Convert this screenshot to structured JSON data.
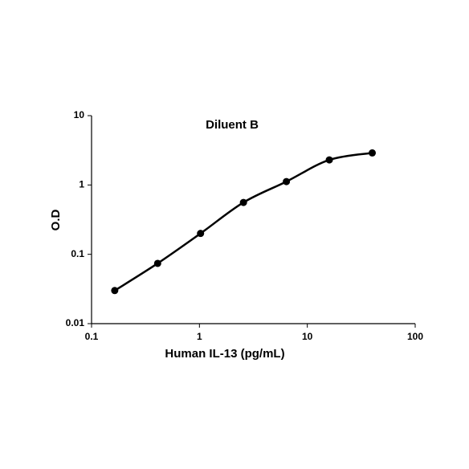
{
  "chart_data": {
    "type": "line",
    "title": "Diluent B",
    "x_label": "Human IL-13 (pg/mL)",
    "y_label": "O.D",
    "x": [
      0.164,
      0.41,
      1.024,
      2.56,
      6.4,
      16,
      40
    ],
    "series": [
      {
        "name": "Diluent B",
        "color": "#000000",
        "values": [
          0.03,
          0.074,
          0.2,
          0.56,
          1.12,
          2.3,
          2.9
        ]
      }
    ],
    "xlim": [
      0.1,
      100
    ],
    "xticks": [
      0.1,
      1,
      10,
      100
    ],
    "ylim": [
      0.01,
      10
    ],
    "yticks": [
      0.01,
      0.1,
      1,
      10
    ],
    "xlog": true,
    "ylog": true,
    "grid": false
  }
}
